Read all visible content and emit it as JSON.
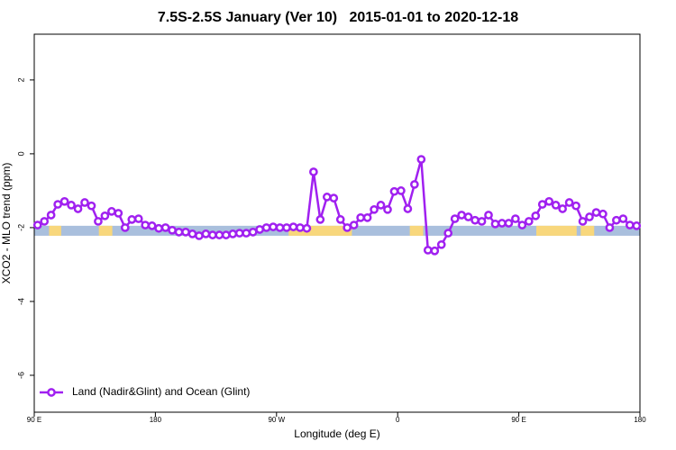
{
  "chart_data": {
    "type": "line",
    "title": "7.5S-2.5S January (Ver 10)   2015-01-01 to 2020-12-18",
    "x_label": "Longitude (deg E)",
    "y_label": "XCO2 - MLO trend (ppm)",
    "xlim": [
      90,
      540
    ],
    "xticks": [
      {
        "value": 90,
        "label": "90 E"
      },
      {
        "value": 180,
        "label": "180"
      },
      {
        "value": 270,
        "label": "90 W"
      },
      {
        "value": 360,
        "label": "0"
      },
      {
        "value": 450,
        "label": "90 E"
      },
      {
        "value": 540,
        "label": "180"
      }
    ],
    "ylim": [
      -7,
      3.24
    ],
    "yticks": [
      2,
      0,
      -2,
      -4,
      -6
    ],
    "legend_position": "bottom-left",
    "band": {
      "ylim": [
        -2.22,
        -1.95
      ],
      "color": "#a9bfdd",
      "land_color": "#f8d77c",
      "land": [
        [
          101,
          110
        ],
        [
          138,
          148
        ],
        [
          279,
          326
        ],
        [
          369,
          379
        ],
        [
          463,
          493
        ],
        [
          496,
          506
        ]
      ]
    },
    "x": [
      92.5,
      97.5,
      102.5,
      107.5,
      112.5,
      117.5,
      122.5,
      127.5,
      132.5,
      137.5,
      142.5,
      147.5,
      152.5,
      157.5,
      162.5,
      167.5,
      172.5,
      177.5,
      182.5,
      187.5,
      192.5,
      197.5,
      202.5,
      207.5,
      212.5,
      217.5,
      222.5,
      227.5,
      232.5,
      237.5,
      242.5,
      247.5,
      252.5,
      257.5,
      262.5,
      267.5,
      272.5,
      277.5,
      282.5,
      287.5,
      292.5,
      297.5,
      302.5,
      307.5,
      312.5,
      317.5,
      322.5,
      327.5,
      332.5,
      337.5,
      342.5,
      347.5,
      352.5,
      357.5,
      362.5,
      367.5,
      372.5,
      377.5,
      382.5,
      387.5,
      392.5,
      397.5,
      402.5,
      407.5,
      412.5,
      417.5,
      422.5,
      427.5,
      432.5,
      437.5,
      442.5,
      447.5,
      452.5,
      457.5,
      462.5,
      467.5,
      472.5,
      477.5,
      482.5,
      487.5,
      492.5,
      497.5,
      502.5,
      507.5,
      512.5,
      517.5,
      522.5,
      527.5,
      532.5,
      537.5
    ],
    "series": [
      {
        "name": "Land (Nadir&Glint) and Ocean (Glint)",
        "color": "#a020f0",
        "values": [
          -1.93,
          -1.83,
          -1.66,
          -1.37,
          -1.29,
          -1.39,
          -1.49,
          -1.32,
          -1.41,
          -1.83,
          -1.68,
          -1.56,
          -1.61,
          -2.0,
          -1.78,
          -1.76,
          -1.93,
          -1.95,
          -2.02,
          -2.0,
          -2.07,
          -2.12,
          -2.12,
          -2.17,
          -2.22,
          -2.17,
          -2.2,
          -2.2,
          -2.2,
          -2.17,
          -2.15,
          -2.15,
          -2.12,
          -2.05,
          -2.0,
          -1.98,
          -2.0,
          -2.0,
          -1.98,
          -2.0,
          -2.02,
          -0.49,
          -1.78,
          -1.17,
          -1.2,
          -1.78,
          -2.0,
          -1.93,
          -1.73,
          -1.73,
          -1.51,
          -1.39,
          -1.51,
          -1.02,
          -1.0,
          -1.49,
          -0.83,
          -0.15,
          -2.61,
          -2.63,
          -2.46,
          -2.15,
          -1.76,
          -1.66,
          -1.71,
          -1.8,
          -1.83,
          -1.66,
          -1.9,
          -1.88,
          -1.88,
          -1.76,
          -1.93,
          -1.83,
          -1.68,
          -1.37,
          -1.29,
          -1.39,
          -1.49,
          -1.32,
          -1.41,
          -1.83,
          -1.71,
          -1.59,
          -1.63,
          -2.0,
          -1.8,
          -1.76,
          -1.93,
          -1.95
        ]
      }
    ]
  }
}
